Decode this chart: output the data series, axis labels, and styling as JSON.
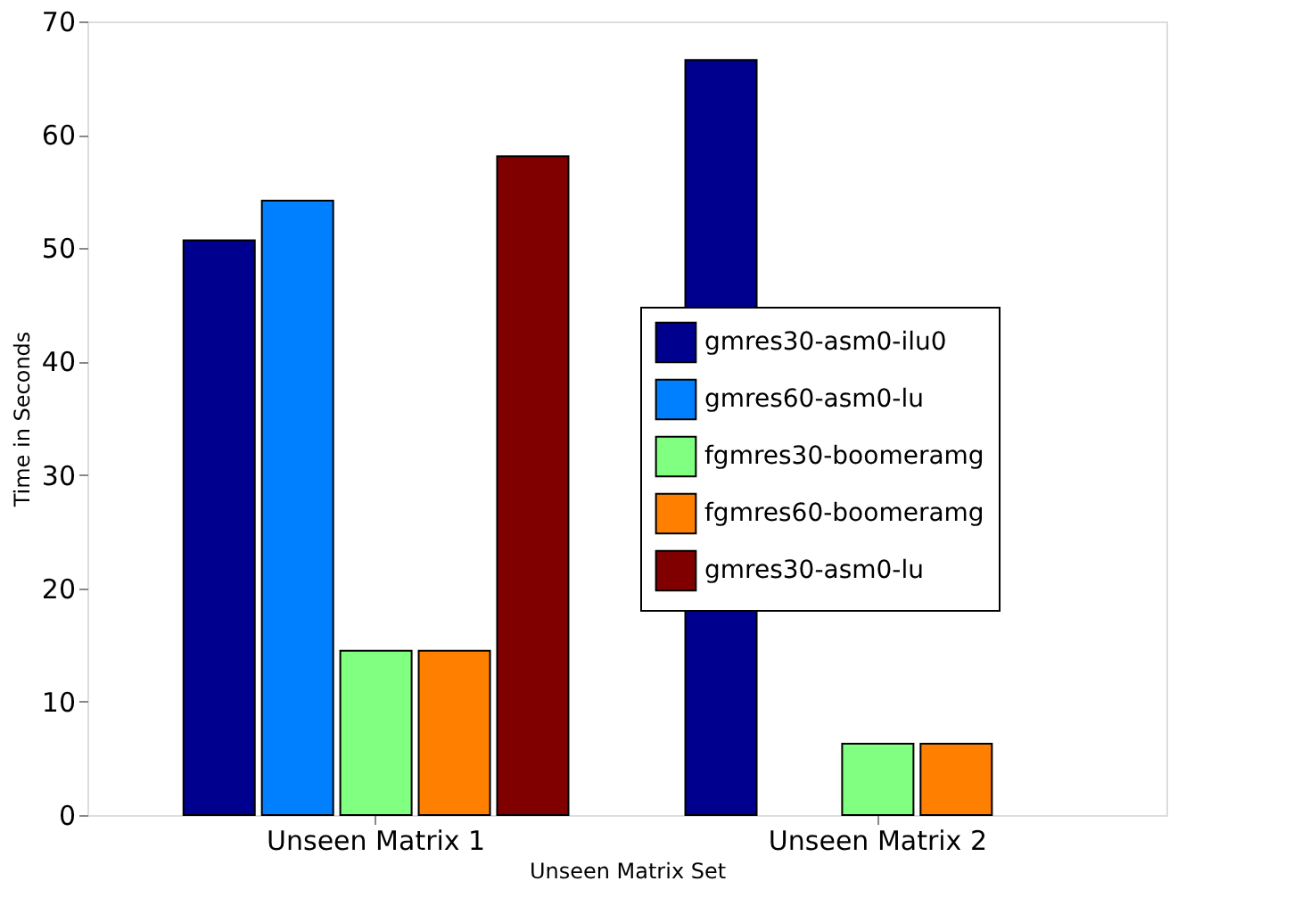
{
  "chart_data": {
    "type": "bar",
    "xlabel": "Unseen Matrix Set",
    "ylabel": "Time in Seconds",
    "categories": [
      "Unseen Matrix 1",
      "Unseen Matrix 2"
    ],
    "series": [
      {
        "name": "gmres30-asm0-ilu0",
        "color": "#00008f",
        "values": [
          50.7,
          66.6
        ]
      },
      {
        "name": "gmres60-asm0-lu",
        "color": "#0080ff",
        "values": [
          54.2,
          null
        ]
      },
      {
        "name": "fgmres30-boomeramg",
        "color": "#80ff80",
        "values": [
          14.5,
          6.3
        ]
      },
      {
        "name": "fgmres60-boomeramg",
        "color": "#ff8000",
        "values": [
          14.5,
          6.3
        ]
      },
      {
        "name": "gmres30-asm0-lu",
        "color": "#800000",
        "values": [
          58.1,
          null
        ]
      }
    ],
    "ylim": [
      0,
      70
    ],
    "yticks": [
      0,
      10,
      20,
      30,
      40,
      50,
      60,
      70
    ],
    "grid": false,
    "legend": "right"
  }
}
